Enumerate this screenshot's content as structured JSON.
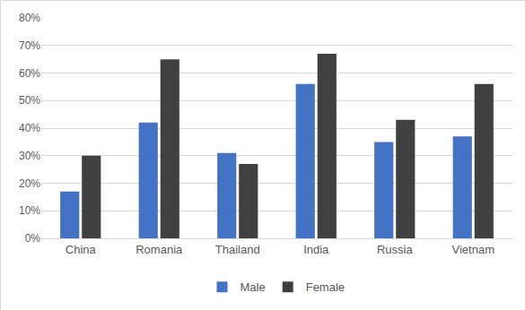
{
  "chart_data": {
    "type": "bar",
    "categories": [
      "China",
      "Romania",
      "Thailand",
      "India",
      "Russia",
      "Vietnam"
    ],
    "series": [
      {
        "name": "Male",
        "color": "#4472c4",
        "values": [
          17,
          42,
          31,
          56,
          35,
          37
        ]
      },
      {
        "name": "Female",
        "color": "#404040",
        "values": [
          30,
          65,
          27,
          67,
          43,
          56
        ]
      }
    ],
    "ylim": [
      0,
      80
    ],
    "yticks": [
      {
        "value": 0,
        "label": "0%"
      },
      {
        "value": 10,
        "label": "10%"
      },
      {
        "value": 20,
        "label": "20%"
      },
      {
        "value": 30,
        "label": "30%"
      },
      {
        "value": 40,
        "label": "40%"
      },
      {
        "value": 50,
        "label": "50%"
      },
      {
        "value": 60,
        "label": "60%"
      },
      {
        "value": 70,
        "label": "70%"
      },
      {
        "value": 80,
        "label": "80%"
      }
    ],
    "grid": true,
    "legend": "bottom"
  }
}
